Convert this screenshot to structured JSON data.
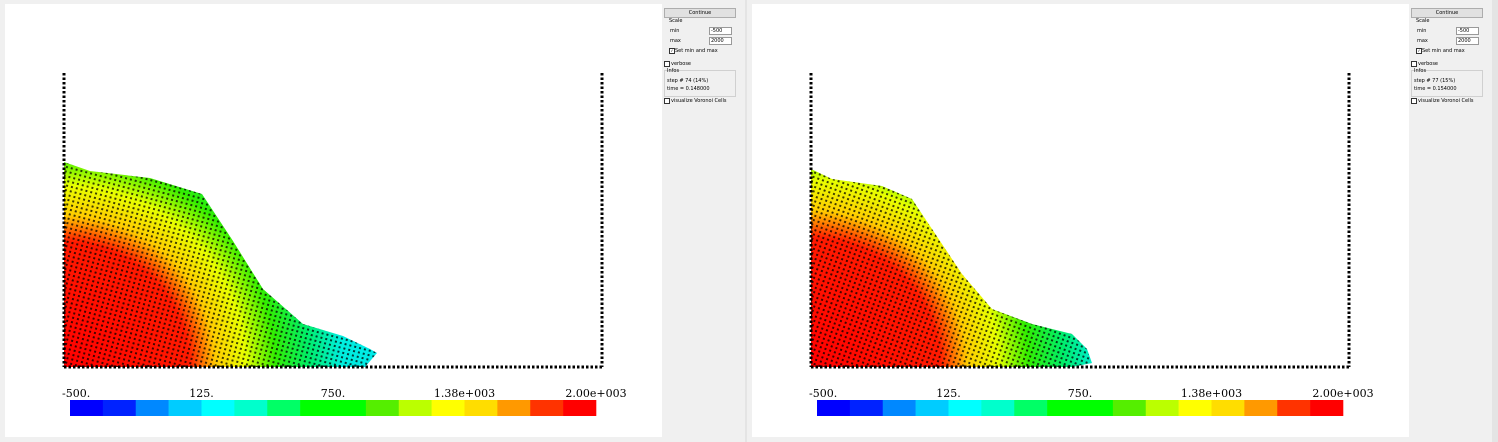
{
  "panels": [
    {
      "button": "Continue",
      "scale": {
        "title": "Scale",
        "min_label": "min",
        "min_value": "-500",
        "max_label": "max",
        "max_value": "2000",
        "checkbox": "Set min and max",
        "checked": true
      },
      "verbose": "verbose",
      "infos": {
        "title": "Infos",
        "step": "step # 74 (14%)",
        "time": "time = 0.148000"
      },
      "voronoi": "visualize Voronoi Cells",
      "colorbar_labels": [
        "-500.",
        "125.",
        "750.",
        "1.38e+003",
        "2.00e+003"
      ]
    },
    {
      "button": "Continue",
      "scale": {
        "title": "Scale",
        "min_label": "min",
        "min_value": "-500",
        "max_label": "max",
        "max_value": "2000",
        "checkbox": "Set min and max",
        "checked": true
      },
      "verbose": "verbose",
      "infos": {
        "title": "Infos",
        "step": "step # 77 (15%)",
        "time": "time = 0.154000"
      },
      "voronoi": "visualize Voronoi Cells",
      "colorbar_labels": [
        "-500.",
        "125.",
        "750.",
        "1.38e+003",
        "2.00e+003"
      ]
    }
  ],
  "colorbar_colors": [
    "#0000ff",
    "#0022ff",
    "#0088ff",
    "#00ccff",
    "#00ffff",
    "#00ffcc",
    "#00ff66",
    "#00ff00",
    "#00ff00",
    "#55ee00",
    "#bbff00",
    "#ffff00",
    "#ffdd00",
    "#ff9900",
    "#ff3300",
    "#ff0000"
  ]
}
